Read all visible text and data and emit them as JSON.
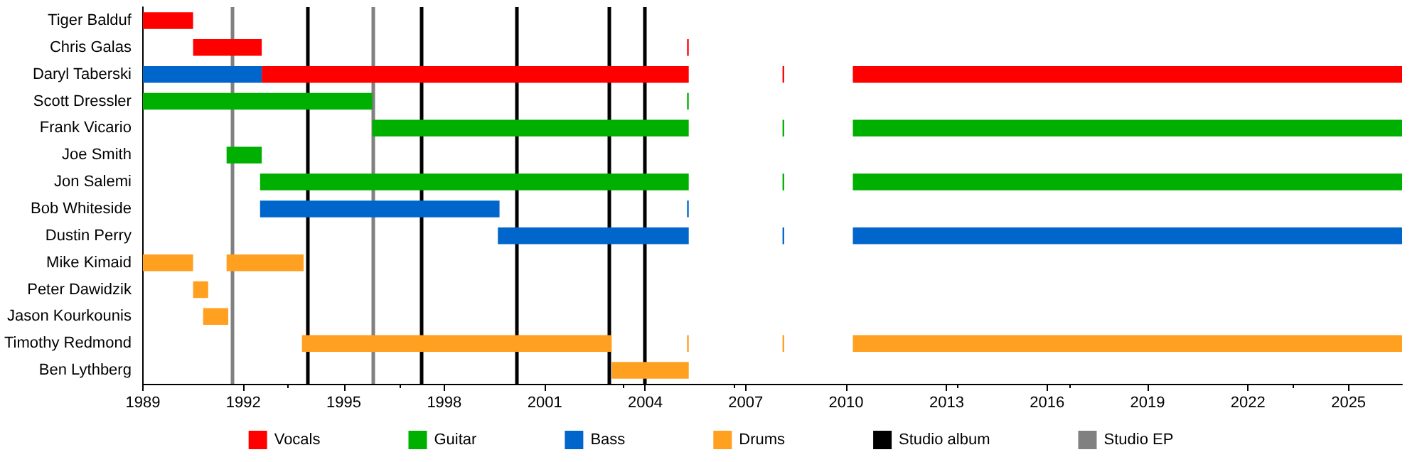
{
  "chart_data": {
    "type": "bar",
    "orientation": "horizontal",
    "categories": [
      "Tiger Balduf",
      "Chris Galas",
      "Daryl Taberski",
      "Scott Dressler",
      "Frank Vicario",
      "Joe Smith",
      "Jon Salemi",
      "Bob Whiteside",
      "Dustin Perry",
      "Mike Kimaid",
      "Peter Dawidzik",
      "Jason Kourkounis",
      "Timothy Redmond",
      "Ben Lythberg"
    ],
    "series": [
      {
        "name": "Vocals",
        "color": "#ff0000",
        "base": [
          1989,
          1990.5,
          1992.55,
          null,
          null,
          null,
          null,
          null,
          null,
          null,
          null,
          null,
          null,
          null
        ],
        "values": [
          1.5,
          2.05,
          12.75,
          null,
          null,
          null,
          null,
          null,
          null,
          null,
          null,
          null,
          null,
          null
        ]
      },
      {
        "color": "#ff0000",
        "base": [
          null,
          2005.25,
          2008.1,
          null,
          null,
          null,
          null,
          null,
          null,
          null,
          null,
          null,
          null,
          null
        ],
        "values": [
          null,
          0.05,
          0.05,
          null,
          null,
          null,
          null,
          null,
          null,
          null,
          null,
          null,
          null,
          null
        ]
      },
      {
        "color": "#ff0000",
        "base": [
          null,
          null,
          2010.2,
          null,
          null,
          null,
          null,
          null,
          null,
          null,
          null,
          null,
          null,
          null
        ],
        "values": [
          null,
          null,
          16.4,
          null,
          null,
          null,
          null,
          null,
          null,
          null,
          null,
          null,
          null,
          null
        ]
      },
      {
        "name": "Guitar",
        "color": "#00b000",
        "base": [
          null,
          null,
          null,
          1989,
          1995.85,
          1991.5,
          1992.5,
          null,
          null,
          null,
          null,
          null,
          null,
          null
        ],
        "values": [
          null,
          null,
          null,
          6.85,
          9.45,
          1.05,
          12.8,
          null,
          null,
          null,
          null,
          null,
          null,
          null
        ]
      },
      {
        "color": "#00b000",
        "base": [
          null,
          null,
          null,
          2005.25,
          2008.1,
          null,
          2008.1,
          null,
          null,
          null,
          null,
          null,
          null,
          null
        ],
        "values": [
          null,
          null,
          null,
          0.05,
          0.05,
          null,
          0.05,
          null,
          null,
          null,
          null,
          null,
          null,
          null
        ]
      },
      {
        "color": "#00b000",
        "base": [
          null,
          null,
          null,
          null,
          2010.2,
          null,
          2010.2,
          null,
          null,
          null,
          null,
          null,
          null,
          null
        ],
        "values": [
          null,
          null,
          null,
          null,
          16.4,
          null,
          16.4,
          null,
          null,
          null,
          null,
          null,
          null,
          null
        ]
      },
      {
        "name": "Bass",
        "color": "#0066cc",
        "base": [
          null,
          null,
          1989,
          null,
          null,
          null,
          null,
          1992.5,
          1999.6,
          null,
          null,
          null,
          null,
          null
        ],
        "values": [
          null,
          null,
          3.55,
          null,
          null,
          null,
          null,
          7.15,
          5.7,
          null,
          null,
          null,
          null,
          null
        ]
      },
      {
        "color": "#0066cc",
        "base": [
          null,
          null,
          null,
          null,
          null,
          null,
          null,
          2005.25,
          2008.1,
          null,
          null,
          null,
          null,
          null
        ],
        "values": [
          null,
          null,
          null,
          null,
          null,
          null,
          null,
          0.05,
          0.05,
          null,
          null,
          null,
          null,
          null
        ]
      },
      {
        "color": "#0066cc",
        "base": [
          null,
          null,
          null,
          null,
          null,
          null,
          null,
          null,
          2010.2,
          null,
          null,
          null,
          null,
          null
        ],
        "values": [
          null,
          null,
          null,
          null,
          null,
          null,
          null,
          null,
          16.4,
          null,
          null,
          null,
          null,
          null
        ]
      },
      {
        "name": "Drums",
        "color": "#ffa020",
        "base": [
          null,
          null,
          null,
          null,
          null,
          null,
          null,
          null,
          null,
          1989,
          1990.5,
          1990.8,
          1993.75,
          2003
        ],
        "values": [
          null,
          null,
          null,
          null,
          null,
          null,
          null,
          null,
          null,
          1.5,
          0.45,
          0.75,
          9.25,
          2.3
        ]
      },
      {
        "color": "#ffa020",
        "base": [
          null,
          null,
          null,
          null,
          null,
          null,
          null,
          null,
          null,
          1991.5,
          null,
          null,
          2005.25,
          null
        ],
        "values": [
          null,
          null,
          null,
          null,
          null,
          null,
          null,
          null,
          null,
          2.3,
          null,
          null,
          0.05,
          null
        ]
      },
      {
        "color": "#ffa020",
        "base": [
          null,
          null,
          null,
          null,
          null,
          null,
          null,
          null,
          null,
          null,
          null,
          null,
          2008.1,
          null
        ],
        "values": [
          null,
          null,
          null,
          null,
          null,
          null,
          null,
          null,
          null,
          null,
          null,
          null,
          0.05,
          null
        ]
      },
      {
        "color": "#ffa020",
        "base": [
          null,
          null,
          null,
          null,
          null,
          null,
          null,
          null,
          null,
          null,
          null,
          null,
          2010.2,
          null
        ],
        "values": [
          null,
          null,
          null,
          null,
          null,
          null,
          null,
          null,
          null,
          null,
          null,
          null,
          16.4,
          null
        ]
      }
    ],
    "xlim": [
      1989,
      2026.6
    ],
    "xticks": [
      1989,
      1992,
      1995,
      1998,
      2001,
      2004,
      2007,
      2010,
      2013,
      2016,
      2019,
      2022,
      2025
    ],
    "ref_lines": [
      {
        "axis": "x",
        "value": 1993.9,
        "label": "Studio album",
        "color": "#000000"
      },
      {
        "axis": "x",
        "value": 1997.3,
        "color": "#000000"
      },
      {
        "axis": "x",
        "value": 2000.15,
        "color": "#000000"
      },
      {
        "axis": "x",
        "value": 2002.9,
        "color": "#000000"
      },
      {
        "axis": "x",
        "value": 2004.0,
        "color": "#000000"
      },
      {
        "axis": "x",
        "value": 1991.65,
        "label": "Studio EP",
        "color": "#808080"
      },
      {
        "axis": "x",
        "value": 1995.85,
        "color": "#808080"
      }
    ],
    "legend": "bottom",
    "grid": false
  }
}
